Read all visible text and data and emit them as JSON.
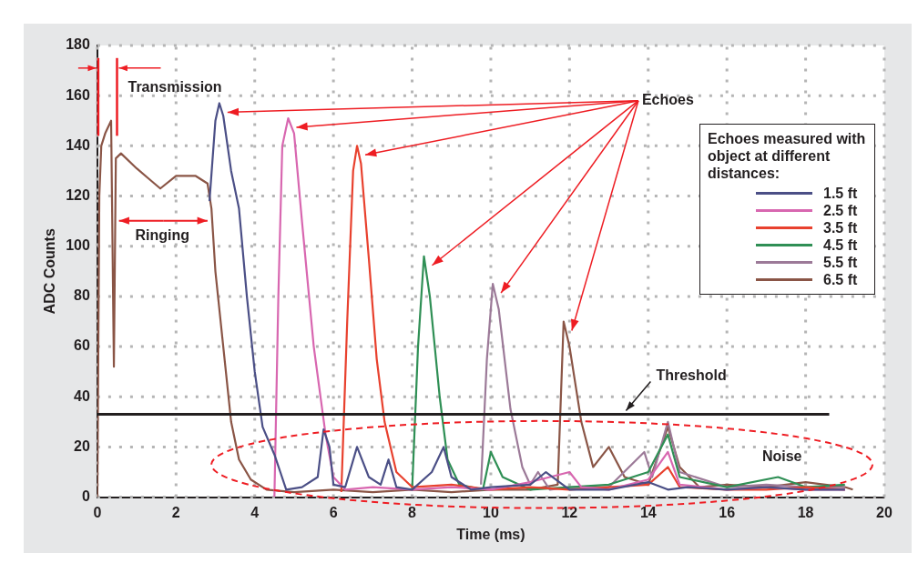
{
  "chart_data": {
    "type": "line",
    "xlabel": "Time (ms)",
    "ylabel": "ADC Counts",
    "legend_title": "Echoes measured with object at different distances:",
    "legend": "top right",
    "grid": true,
    "marker": "none",
    "line_style": "solid",
    "xlim": [
      0,
      20
    ],
    "xticks": [
      0,
      2,
      4,
      6,
      8,
      10,
      12,
      14,
      16,
      18,
      20
    ],
    "ylim": [
      0,
      180
    ],
    "yticks": [
      0,
      20,
      40,
      60,
      80,
      100,
      120,
      140,
      160,
      180
    ],
    "ref_lines": [
      {
        "axis": "y",
        "value": 33,
        "label": "Threshold",
        "color": "#231f20"
      },
      {
        "axis": "x",
        "value": 0,
        "color": "#ee1d23"
      },
      {
        "axis": "x",
        "value": 0.5,
        "label": "Transmission",
        "color": "#ee1d23"
      }
    ],
    "annotations": [
      "Echoes",
      "Ringing",
      "Noise"
    ],
    "series": [
      {
        "name": "1.5 ft",
        "color": "#4b4f86",
        "x": [
          2.85,
          3.0,
          3.1,
          3.2,
          3.4,
          3.6,
          3.8,
          4.0,
          4.2,
          4.5,
          4.65,
          4.8,
          5.2,
          5.6,
          5.75,
          5.9,
          6.0,
          6.3,
          6.6,
          6.9,
          7.2,
          7.4,
          7.6,
          8.0,
          8.5,
          8.8,
          9.0,
          9.5,
          10,
          11,
          11.4,
          12,
          13,
          14,
          14.5,
          15,
          16,
          17,
          18,
          19
        ],
        "values": [
          118,
          150,
          157,
          152,
          130,
          115,
          80,
          50,
          28,
          17,
          10,
          3,
          4,
          8,
          27,
          20,
          5,
          4,
          20,
          8,
          5,
          15,
          4,
          3,
          10,
          20,
          8,
          3,
          4,
          5,
          10,
          3,
          3,
          6,
          3,
          4,
          3,
          4,
          3,
          3
        ]
      },
      {
        "name": "2.5 ft",
        "color": "#d867b0",
        "x": [
          4.5,
          4.6,
          4.7,
          4.85,
          5.0,
          5.2,
          5.5,
          5.8,
          6.0,
          6.3,
          7,
          8,
          9,
          10,
          11,
          12,
          12.3,
          13,
          14,
          14.5,
          14.8,
          16,
          17,
          18,
          19
        ],
        "values": [
          0,
          80,
          140,
          151,
          145,
          110,
          60,
          25,
          8,
          3,
          4,
          3,
          4,
          3,
          6,
          10,
          4,
          3,
          7,
          18,
          5,
          3,
          4,
          3,
          3
        ]
      },
      {
        "name": "3.5 ft",
        "color": "#e8412e",
        "x": [
          6.2,
          6.35,
          6.5,
          6.6,
          6.7,
          6.9,
          7.1,
          7.3,
          7.6,
          8,
          9,
          10,
          11,
          12,
          13,
          14,
          14.5,
          14.8,
          16,
          17,
          18,
          19
        ],
        "values": [
          2,
          70,
          130,
          140,
          133,
          95,
          55,
          30,
          10,
          4,
          5,
          3,
          4,
          3,
          4,
          5,
          12,
          4,
          3,
          3,
          4,
          3
        ]
      },
      {
        "name": "4.5 ft",
        "color": "#2f8f55",
        "x": [
          8.0,
          8.15,
          8.3,
          8.45,
          8.7,
          8.9,
          9.2,
          9.8,
          10,
          10.3,
          11,
          12,
          13,
          14,
          14.5,
          14.8,
          16,
          17.3,
          18,
          19
        ],
        "values": [
          3,
          60,
          96,
          80,
          40,
          15,
          5,
          3,
          18,
          8,
          3,
          4,
          5,
          10,
          25,
          8,
          4,
          8,
          4,
          5
        ]
      },
      {
        "name": "5.5 ft",
        "color": "#9c7a98",
        "x": [
          9.75,
          9.9,
          10.05,
          10.2,
          10.5,
          10.8,
          11.0,
          11.2,
          11.5,
          12,
          13,
          13.9,
          14.1,
          14.5,
          14.8,
          16,
          17,
          18,
          19
        ],
        "values": [
          5,
          55,
          85,
          75,
          35,
          12,
          5,
          10,
          3,
          4,
          4,
          18,
          8,
          30,
          10,
          4,
          5,
          4,
          4
        ]
      },
      {
        "name": "6.5 ft",
        "color": "#8a5546",
        "x": [
          0,
          0.05,
          0.1,
          0.2,
          0.35,
          0.42,
          0.47,
          0.6,
          1.0,
          1.3,
          1.6,
          2.0,
          2.5,
          2.8,
          2.9,
          3.0,
          3.2,
          3.4,
          3.6,
          3.9,
          4.3,
          5,
          6,
          7,
          8,
          9,
          10,
          11,
          11.7,
          11.85,
          12.0,
          12.3,
          12.6,
          13.0,
          13.4,
          14,
          14.5,
          14.8,
          15.3,
          16,
          17,
          18,
          19,
          19.2
        ],
        "values": [
          0,
          120,
          140,
          145,
          150,
          52,
          135,
          137,
          131,
          127,
          123,
          128,
          128,
          125,
          115,
          90,
          60,
          30,
          15,
          7,
          3,
          2,
          3,
          2,
          3,
          2,
          3,
          3,
          5,
          70,
          60,
          30,
          12,
          20,
          8,
          5,
          28,
          12,
          4,
          5,
          4,
          6,
          4,
          3
        ]
      }
    ]
  }
}
